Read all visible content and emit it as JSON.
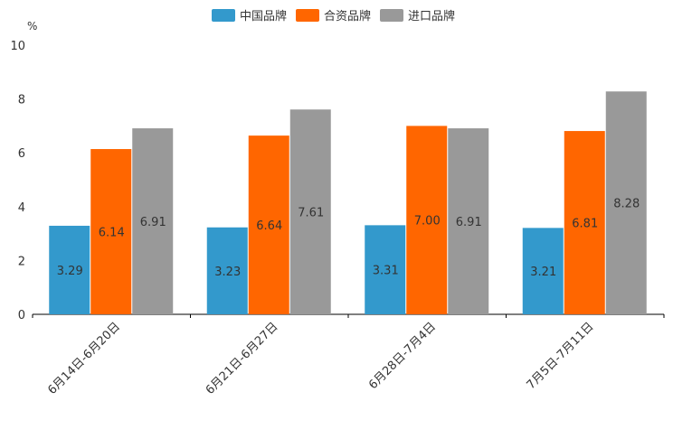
{
  "chart_data": {
    "type": "bar",
    "unit": "%",
    "categories": [
      "6月14日-6月20日",
      "6月21日-6月27日",
      "6月28日-7月4日",
      "7月5日-7月11日"
    ],
    "series": [
      {
        "name": "中国品牌",
        "color": "#3399cc",
        "values": [
          3.29,
          3.23,
          3.31,
          3.21
        ],
        "labels": [
          "3.29",
          "3.23",
          "3.31",
          "3.21"
        ]
      },
      {
        "name": "合资品牌",
        "color": "#ff6600",
        "values": [
          6.14,
          6.64,
          7.0,
          6.81
        ],
        "labels": [
          "6.14",
          "6.64",
          "7.00",
          "6.81"
        ]
      },
      {
        "name": "进口品牌",
        "color": "#999999",
        "values": [
          6.91,
          7.61,
          6.91,
          8.28
        ],
        "labels": [
          "6.91",
          "7.61",
          "6.91",
          "8.28"
        ]
      }
    ],
    "yticks": [
      "0",
      "2",
      "4",
      "6",
      "8",
      "10"
    ],
    "ylim": [
      0,
      10
    ],
    "legend_position": "top-center"
  }
}
